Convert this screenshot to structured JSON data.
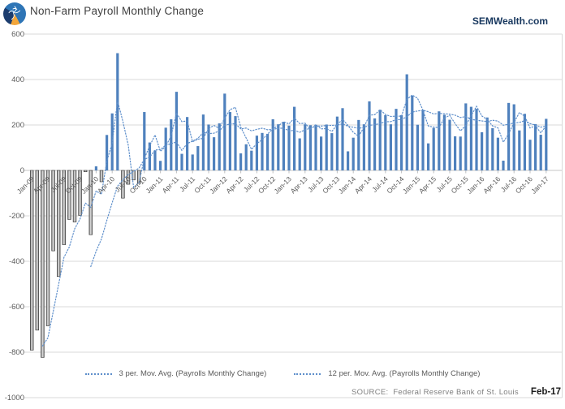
{
  "header": {
    "title": "Non-Farm Payroll Monthly Change",
    "brand": "SEMWealth.com"
  },
  "footer": {
    "source_label": "SOURCE:",
    "source_text": "Federal Reserve Bank of St. Louis",
    "date_label": "Feb-17"
  },
  "chart_data": {
    "type": "bar",
    "title": "Non-Farm Payroll Monthly Change",
    "ylim": [
      -1000,
      600
    ],
    "y_ticks": [
      600,
      400,
      200,
      0,
      -200,
      -400,
      -600,
      -800,
      -1000
    ],
    "grid": true,
    "legend_position": "bottom",
    "x_start_month": "Jan-09",
    "x_tick_every": 3,
    "x_tick_labels": [
      "Jan-09",
      "Apr-09",
      "Jul-09",
      "Oct-09",
      "Jan-10",
      "Apr-10",
      "Jul-10",
      "Oct-10",
      "Jan-11",
      "Apr-11",
      "Jul-11",
      "Oct-11",
      "Jan-12",
      "Apr-12",
      "Jul-12",
      "Oct-12",
      "Jan-13",
      "Apr-13",
      "Jul-13",
      "Oct-13",
      "Jan-14",
      "Apr-14",
      "Jul-14",
      "Oct-14",
      "Jan-15",
      "Apr-15",
      "Jul-15",
      "Oct-15",
      "Jan-16",
      "Apr-16",
      "Jul-16",
      "Oct-16",
      "Jan-17"
    ],
    "values": [
      -791,
      -703,
      -823,
      -684,
      -354,
      -467,
      -327,
      -216,
      -227,
      -198,
      -6,
      -283,
      18,
      -50,
      156,
      251,
      516,
      -122,
      -61,
      -42,
      -57,
      257,
      123,
      88,
      42,
      188,
      225,
      346,
      73,
      235,
      70,
      107,
      246,
      202,
      146,
      207,
      338,
      257,
      239,
      75,
      115,
      87,
      153,
      165,
      161,
      225,
      203,
      214,
      197,
      280,
      141,
      203,
      199,
      201,
      149,
      202,
      164,
      237,
      274,
      84,
      144,
      222,
      203,
      304,
      229,
      267,
      243,
      203,
      271,
      243,
      423,
      329,
      201,
      266,
      119,
      187,
      260,
      245,
      223,
      150,
      149,
      295,
      280,
      271,
      168,
      233,
      186,
      144,
      43,
      297,
      291,
      176,
      249,
      135,
      204,
      157,
      227
    ],
    "trendlines": [
      {
        "label": "3 per. Mov. Avg. (Payrolls Monthly Change)",
        "period": 3
      },
      {
        "label": "12 per. Mov. Avg. (Payrolls Monthly Change)",
        "period": 12
      }
    ],
    "colors": {
      "bar_positive": "#4f81bd",
      "bar_negative_fill_edge": "#757575",
      "bar_negative_fill_mid": "#e2e2e2",
      "bar_negative_stroke": "#333333",
      "ma_line": "#5e8fcb",
      "grid": "#d9d9d9",
      "zero_axis": "#c6c6c6",
      "axis_text": "#595959",
      "brand_text": "#17375e"
    }
  }
}
